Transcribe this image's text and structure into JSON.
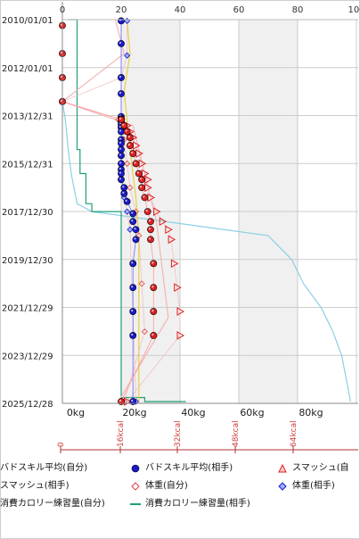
{
  "chart_data": {
    "type": "scatter",
    "date_ticks": [
      "2010/01/01",
      "2012/01/01",
      "2013/12/31",
      "2015/12/31",
      "2017/12/30",
      "2019/12/30",
      "2021/12/29",
      "2023/12/29",
      "2025/12/28"
    ],
    "top_ticks": [
      "0",
      "20",
      "40",
      "60",
      "80",
      "100"
    ],
    "bottom_kg_ticks": [
      "0kg",
      "20kg",
      "40kg",
      "60kg",
      "80kg"
    ],
    "kcal_ticks": [
      "0",
      "16kcal",
      "32kcal",
      "48kcal",
      "64kcal"
    ],
    "xlim_kg": [
      0,
      100
    ],
    "top_scale_value": [
      0,
      100
    ],
    "grid": true,
    "shaded_bands": [
      [
        20,
        40
      ],
      [
        60,
        80
      ]
    ],
    "legend_placement": "bottom",
    "series": [
      {
        "name": "バドスキル平均(自分)",
        "marker": "circle-red",
        "color": "#e02020",
        "points": [
          [
            "2010/04/01",
            0
          ],
          [
            "2011/06/01",
            0
          ],
          [
            "2012/06/01",
            0
          ],
          [
            "2013/06/01",
            0
          ],
          [
            "2014/03/01",
            20
          ],
          [
            "2014/06/01",
            21
          ],
          [
            "2014/09/01",
            22
          ],
          [
            "2014/12/01",
            23
          ],
          [
            "2015/04/01",
            23
          ],
          [
            "2015/08/01",
            24
          ],
          [
            "2016/01/01",
            25
          ],
          [
            "2016/06/01",
            26
          ],
          [
            "2016/09/01",
            27
          ],
          [
            "2017/01/01",
            27
          ],
          [
            "2017/06/01",
            28
          ],
          [
            "2018/01/01",
            29
          ],
          [
            "2018/06/01",
            30
          ],
          [
            "2018/10/01",
            30
          ],
          [
            "2019/03/01",
            30
          ],
          [
            "2020/03/01",
            31
          ],
          [
            "2021/03/01",
            31
          ],
          [
            "2022/03/01",
            31
          ],
          [
            "2023/03/01",
            31
          ],
          [
            "2025/12/01",
            20
          ]
        ]
      },
      {
        "name": "バドスキル平均(相手)",
        "marker": "circle-blue",
        "color": "#1a1acc",
        "points": [
          [
            "2010/01/20",
            20
          ],
          [
            "2011/01/01",
            20
          ],
          [
            "2012/06/01",
            20
          ],
          [
            "2013/02/01",
            20
          ],
          [
            "2014/01/15",
            20
          ],
          [
            "2014/02/20",
            20
          ],
          [
            "2014/04/01",
            20
          ],
          [
            "2014/05/15",
            20
          ],
          [
            "2014/07/01",
            20
          ],
          [
            "2014/09/01",
            20
          ],
          [
            "2015/01/01",
            20
          ],
          [
            "2015/03/01",
            20
          ],
          [
            "2015/06/01",
            20
          ],
          [
            "2015/09/01",
            20
          ],
          [
            "2016/01/01",
            20
          ],
          [
            "2016/04/01",
            20
          ],
          [
            "2016/06/01",
            20
          ],
          [
            "2016/09/01",
            20
          ],
          [
            "2017/01/01",
            21
          ],
          [
            "2017/04/01",
            21
          ],
          [
            "2017/08/01",
            22
          ],
          [
            "2018/02/01",
            24
          ],
          [
            "2018/06/01",
            24
          ],
          [
            "2018/10/01",
            25
          ],
          [
            "2019/03/01",
            25
          ],
          [
            "2020/03/01",
            24
          ],
          [
            "2021/03/01",
            24
          ],
          [
            "2022/03/01",
            24
          ],
          [
            "2023/03/01",
            24
          ],
          [
            "2025/12/01",
            24
          ]
        ]
      },
      {
        "name": "スマッシュ(自分)",
        "marker": "triangle-red",
        "color": "#e02020",
        "points": [
          [
            "2014/03/01",
            20
          ],
          [
            "2014/06/01",
            22
          ],
          [
            "2014/09/01",
            23
          ],
          [
            "2014/12/01",
            24
          ],
          [
            "2015/04/01",
            25
          ],
          [
            "2015/08/01",
            26
          ],
          [
            "2016/01/01",
            27
          ],
          [
            "2016/06/01",
            28
          ],
          [
            "2016/09/01",
            29
          ],
          [
            "2017/01/01",
            29
          ],
          [
            "2017/06/01",
            30
          ],
          [
            "2018/01/01",
            32
          ],
          [
            "2018/06/01",
            34
          ],
          [
            "2018/10/01",
            36
          ],
          [
            "2019/03/01",
            37
          ],
          [
            "2020/03/01",
            38
          ],
          [
            "2021/03/01",
            39
          ],
          [
            "2022/03/01",
            40
          ],
          [
            "2023/03/01",
            40
          ],
          [
            "2025/12/01",
            22
          ]
        ]
      },
      {
        "name": "スマッシュ(相手)",
        "marker": "diamond-red",
        "color": "#e04040",
        "points": [
          [
            "2014/03/01",
            19
          ],
          [
            "2014/06/01",
            20
          ],
          [
            "2015/01/01",
            21
          ],
          [
            "2016/01/01",
            22
          ],
          [
            "2017/01/01",
            23
          ],
          [
            "2018/01/01",
            25
          ],
          [
            "2019/01/01",
            26
          ],
          [
            "2021/01/01",
            27
          ],
          [
            "2023/01/01",
            28
          ],
          [
            "2025/12/01",
            21
          ]
        ]
      },
      {
        "name": "体重(自分)",
        "marker": "diamond-blue",
        "color": "#1a1acc",
        "points": [
          [
            "2010/01/20",
            22
          ],
          [
            "2011/07/01",
            22
          ],
          [
            "2012/06/01",
            20
          ],
          [
            "2013/06/01",
            0
          ],
          [
            "2014/03/01",
            20
          ],
          [
            "2014/09/01",
            20
          ],
          [
            "2015/06/01",
            20
          ],
          [
            "2016/06/01",
            20
          ],
          [
            "2017/06/01",
            21
          ],
          [
            "2018/01/01",
            22
          ],
          [
            "2018/10/01",
            23
          ],
          [
            "2025/12/01",
            25
          ]
        ]
      },
      {
        "name": "体重(相手)",
        "marker": "line-lightblue",
        "color": "#8ccfe6",
        "points": [
          [
            "2013/06/01",
            0
          ],
          [
            "2014/03/01",
            1
          ],
          [
            "2015/06/01",
            2
          ],
          [
            "2016/06/01",
            3
          ],
          [
            "2017/09/01",
            5
          ],
          [
            "2018/01/01",
            10
          ],
          [
            "2018/06/01",
            35
          ],
          [
            "2019/01/01",
            70
          ],
          [
            "2020/01/01",
            78
          ],
          [
            "2021/01/01",
            82
          ],
          [
            "2022/01/01",
            88
          ],
          [
            "2023/01/01",
            92
          ],
          [
            "2024/01/01",
            95
          ],
          [
            "2025/12/01",
            98
          ]
        ]
      },
      {
        "name": "消費カロリー練習量(自分)",
        "marker": "line-green",
        "color": "#1f9e7a",
        "points": [
          [
            "2010/01/01",
            2
          ],
          [
            "2010/09/01",
            5
          ],
          [
            "2015/06/01",
            5
          ],
          [
            "2016/06/01",
            6
          ],
          [
            "2017/09/01",
            8
          ],
          [
            "2018/01/01",
            10
          ],
          [
            "2018/04/01",
            20
          ],
          [
            "2025/10/01",
            20
          ],
          [
            "2025/12/01",
            28
          ],
          [
            "2025/12/01",
            42
          ]
        ]
      },
      {
        "name": "消費カロリー練習量(相手)",
        "marker": "line-yellow",
        "color": "#e6d040",
        "points": [
          [
            "2010/01/01",
            22
          ],
          [
            "2011/06/01",
            23
          ],
          [
            "2013/01/01",
            21
          ],
          [
            "2014/03/01",
            22
          ],
          [
            "2015/06/01",
            23
          ],
          [
            "2016/06/01",
            24
          ],
          [
            "2017/06/01",
            25
          ],
          [
            "2019/01/01",
            26
          ],
          [
            "2025/12/01",
            26
          ]
        ]
      },
      {
        "name": "light-pink line",
        "marker": "line-pink",
        "color": "#f2b5b5",
        "points": [
          [
            "2010/01/01",
            18
          ],
          [
            "2011/06/01",
            21
          ],
          [
            "2013/06/01",
            0
          ],
          [
            "2014/06/01",
            24
          ],
          [
            "2016/06/01",
            28
          ],
          [
            "2018/06/01",
            32
          ],
          [
            "2022/06/01",
            36
          ],
          [
            "2025/12/01",
            19
          ]
        ]
      }
    ]
  },
  "legend": [
    {
      "label": "バドスキル平均(自分)",
      "marker": "circle-blue-prefix"
    },
    {
      "label": "バドスキル平均(相手)",
      "marker": "circle-blue"
    },
    {
      "label": "スマッシュ(自",
      "marker": "triangle-red"
    },
    {
      "label": "スマッシュ(相手)",
      "marker": "none"
    },
    {
      "label": "体重(自分)",
      "marker": "diamond-red"
    },
    {
      "label": "体重(相手)",
      "marker": "diamond-blue"
    },
    {
      "label": "消費カロリー練習量(自分)",
      "marker": "none"
    },
    {
      "label": "消費カロリー練習量(相手)",
      "marker": "line-green"
    }
  ]
}
